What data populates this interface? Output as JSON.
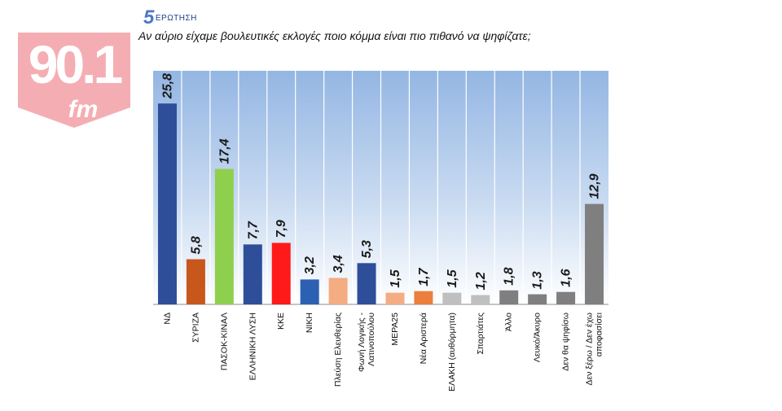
{
  "header": {
    "logo_text": "90.1",
    "logo_sub": "fm",
    "question_number": "5",
    "question_label": "ΕΡΩΤΗΣΗ"
  },
  "colors": {
    "logo_bg": "#f4aeb3",
    "logo_fg": "#ffffff",
    "plot_bg_top": "#94b6e3",
    "plot_bg_bottom": "#ffffff"
  },
  "chart_data": {
    "type": "bar",
    "title": "Αν αύριο είχαμε βουλευτικές εκλογές ποιο κόμμα είναι πιο πιθανό να ψηφίζατε;",
    "xlabel": "",
    "ylabel": "",
    "ylim": [
      0,
      30
    ],
    "grid": false,
    "legend": "none",
    "categories": [
      [
        "ΝΔ"
      ],
      [
        "ΣΥΡΙΖΑ"
      ],
      [
        "ΠΑΣΟΚ-ΚΙΝΑΛ"
      ],
      [
        "ΕΛΛΗΝΙΚΗ ΛΥΣΗ"
      ],
      [
        "ΚΚΕ"
      ],
      [
        "ΝΙΚΗ"
      ],
      [
        "Πλεύση Ελευθερίας"
      ],
      [
        "Φωνή Λογικής -",
        "Λατινοπούλου"
      ],
      [
        "ΜΕΡΑ25"
      ],
      [
        "Νέα Αριστερά"
      ],
      [
        "ΕΛΑΚΗ (αυθόρμητα)"
      ],
      [
        "Σπαρτιάτες"
      ],
      [
        "Άλλο"
      ],
      [
        "Λευκό/Άκυρο"
      ],
      [
        "Δεν θα ψηφίσω"
      ],
      [
        "Δεν ξέρω / Δεν έχω",
        "αποφασίσει"
      ]
    ],
    "values": [
      25.8,
      5.8,
      17.4,
      7.7,
      7.9,
      3.2,
      3.4,
      5.3,
      1.5,
      1.7,
      1.5,
      1.2,
      1.8,
      1.3,
      1.6,
      12.9
    ],
    "data_labels": [
      "25,8",
      "5,8",
      "17,4",
      "7,7",
      "7,9",
      "3,2",
      "3,4",
      "5,3",
      "1,5",
      "1,7",
      "1,5",
      "1,2",
      "1,8",
      "1,3",
      "1,6",
      "12,9"
    ],
    "bar_colors": [
      "#2e4e9a",
      "#c8571c",
      "#8fcf4e",
      "#2e4e9a",
      "#ff1a1a",
      "#2c60b3",
      "#f4ac83",
      "#2e4e9a",
      "#f4ac83",
      "#ec7e3e",
      "#bfbfbf",
      "#bfbfbf",
      "#7f7f7f",
      "#7f7f7f",
      "#7f7f7f",
      "#7f7f7f"
    ]
  }
}
